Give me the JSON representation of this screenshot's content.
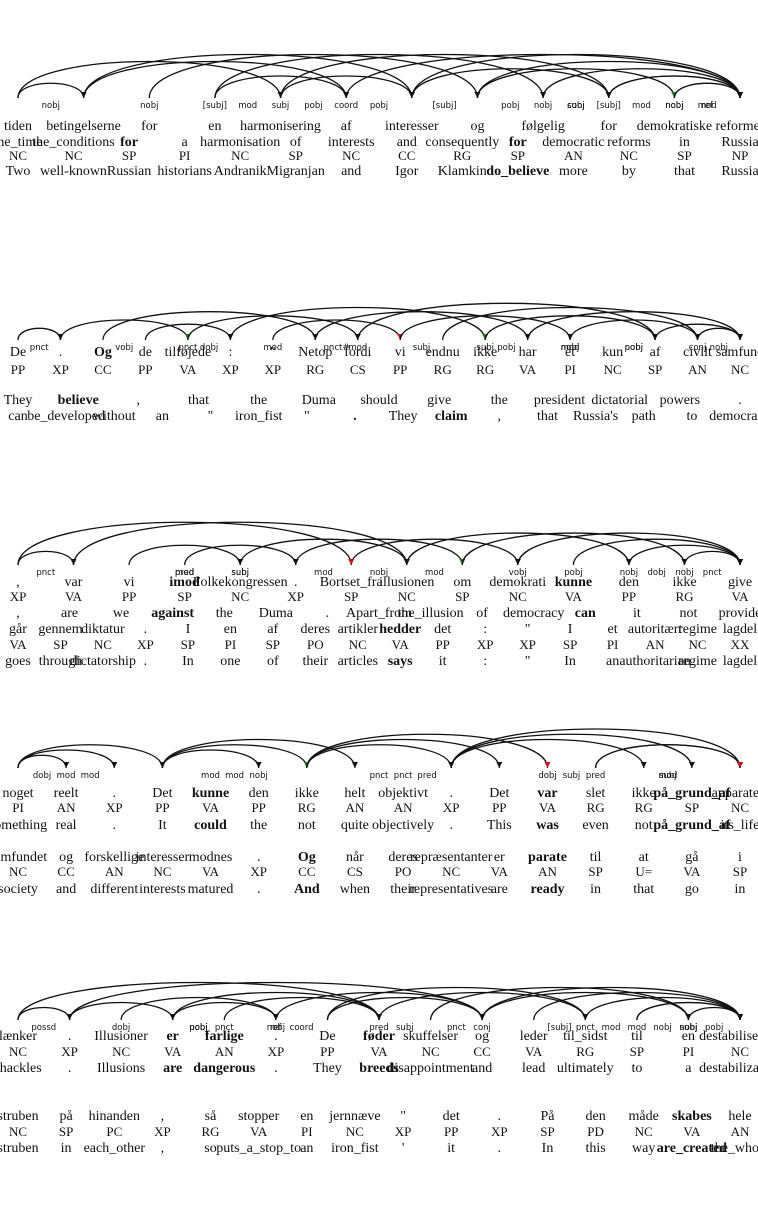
{
  "colors": {
    "ink": "#111111",
    "blue": "#1a1acc",
    "red": "#cc1111",
    "green": "#1a7a1a"
  },
  "blocks": [
    {
      "rows": [
        {
          "tokens": [
            "tiden",
            "betingelserne",
            "for",
            "en",
            "harmonisering",
            "af",
            "interesser",
            "og",
            "følgelig",
            "for",
            "demokratiske",
            "reformer"
          ]
        },
        {
          "tokens": [
            "the_time",
            "the_conditions",
            "for",
            "a",
            "harmonisation",
            "of",
            "interests",
            "and",
            "consequently",
            "for",
            "democratic",
            "reforms",
            "in",
            "Russia"
          ],
          "highlight": {
            "for": "blue"
          }
        },
        {
          "tags": [
            "NC",
            "NC",
            "SP",
            "PI",
            "NC",
            "SP",
            "NC",
            "CC",
            "RG",
            "SP",
            "AN",
            "NC",
            "SP",
            "NP"
          ]
        },
        {
          "tokens": [
            "Two",
            "well-known",
            "Russian",
            "historians",
            "Andranik",
            "Migranjan",
            "and",
            "Igor",
            "Klamkin",
            "do_believe",
            "more",
            "by",
            "that",
            "Russia"
          ],
          "highlight": {
            "do_believe": "blue"
          }
        }
      ],
      "arcs": [
        "nobj",
        "subj",
        "pobj",
        "nobj",
        "mod",
        "coord",
        "conj",
        "mod",
        "pobj",
        "nobj",
        "mod",
        "nobj",
        "pobj",
        "subj",
        "nobj",
        "[subj]",
        "[subj]",
        "[subj]",
        "ref"
      ]
    },
    {
      "rows": [
        {
          "tokens": [
            "De",
            ".",
            "Og",
            "de",
            "tilføjede",
            ":",
            "\"",
            "Netop",
            "fordi",
            "vi",
            "endnu",
            "ikke",
            "har",
            "et",
            "kun",
            "af",
            "civilt",
            "samfund"
          ],
          "highlight": {
            "Og": "blue"
          }
        },
        {
          "tags": [
            "PP",
            "XP",
            "CC",
            "PP",
            "VA",
            "XP",
            "XP",
            "RG",
            "CS",
            "PP",
            "RG",
            "RG",
            "VA",
            "PI",
            "NC",
            "SP",
            "AN",
            "NC"
          ]
        },
        {
          "tokens": [
            "They",
            "believe",
            ",",
            "that",
            "the",
            "Duma",
            "should",
            "give",
            "the",
            "president",
            "dictatorial",
            "powers",
            "."
          ],
          "highlight": {
            "believe": "blue",
            "the_president": "red"
          }
        },
        {
          "tokens": [
            "can",
            "be_developed",
            "without",
            "an",
            "\"",
            "iron_fist",
            "\"",
            ".",
            "They",
            "claim",
            ",",
            "that",
            "Russia's",
            "path",
            "to",
            "democracy"
          ],
          "highlight": {
            ".": "red",
            "claim": "green"
          }
        }
      ],
      "arcs": [
        "pnct",
        "pnct",
        "pnct#",
        "subj",
        "nobj",
        "conj",
        "vobj",
        "mod",
        "subj",
        "mod",
        "pobj",
        "nobj",
        "dobj",
        "mod",
        "pobj",
        "nobj"
      ]
    },
    {
      "rows": [
        {
          "tokens": [
            ",",
            "var",
            "vi",
            "imod",
            "Folkekongressen",
            ".",
            "Bortset_fra",
            "illusionen",
            "om",
            "demokrati",
            "kunne",
            "den",
            "ikke",
            "give"
          ],
          "highlight": {
            "imod": "blue",
            "kunne": "blue"
          }
        },
        {
          "tags": [
            "XP",
            "VA",
            "PP",
            "SP",
            "NC",
            "XP",
            "SP",
            "NC",
            "SP",
            "NC",
            "VA",
            "PP",
            "RG",
            "VA"
          ]
        },
        {
          "tokens": [
            ",",
            "are",
            "we",
            "against",
            "the",
            "Duma",
            ".",
            "Apart_from",
            "the_illusion",
            "of",
            "democracy",
            "can",
            "it",
            "not",
            "provide"
          ],
          "highlight": {
            "against": "blue",
            "can": "blue"
          }
        },
        {
          "tokens": [
            "går",
            "gennem",
            "diktatur",
            ".",
            "I",
            "en",
            "af",
            "deres",
            "artikler",
            "hedder",
            "det",
            ":",
            "\"",
            "I",
            "et",
            "autoritært",
            "regime",
            "lagdel"
          ],
          "highlight": {
            "hedder": "green"
          }
        },
        {
          "tags": [
            "VA",
            "SP",
            "NC",
            "XP",
            "SP",
            "PI",
            "SP",
            "PO",
            "NC",
            "VA",
            "PP",
            "XP",
            "XP",
            "SP",
            "PI",
            "AN",
            "NC",
            "XX"
          ]
        },
        {
          "tokens": [
            "goes",
            "through",
            "dictatorship",
            ".",
            "In",
            "one",
            "of",
            "their",
            "articles",
            "says",
            "it",
            ":",
            "\"",
            "In",
            "an",
            "authoritarian",
            "regime",
            "lagdel"
          ],
          "highlight": {
            "says": "green"
          }
        }
      ],
      "arcs": [
        "pnct",
        "subj",
        "mod",
        "nobj",
        "pnct",
        "mod",
        "nobj",
        "pobj",
        "nobj",
        "subj",
        "mod",
        "vobj",
        "dobj",
        "pred"
      ]
    },
    {
      "rows": [
        {
          "tokens": [
            "noget",
            "reelt",
            ".",
            "Det",
            "kunne",
            "den",
            "ikke",
            "helt",
            "objektivt",
            ".",
            "Det",
            "var",
            "slet",
            "ikke",
            "på_grund_af",
            "apparatets"
          ],
          "highlight": {
            "kunne": "blue",
            "var": "blue",
            "på_grund_af": "blue"
          }
        },
        {
          "tags": [
            "PI",
            "AN",
            "XP",
            "PP",
            "VA",
            "PP",
            "RG",
            "AN",
            "AN",
            "XP",
            "PP",
            "VA",
            "RG",
            "RG",
            "SP",
            "NC"
          ]
        },
        {
          "tokens": [
            "something",
            "real",
            ".",
            "It",
            "could",
            "the",
            "not",
            "quite",
            "objectively",
            ".",
            "This",
            "was",
            "even",
            "not",
            "på_grund_af",
            "its_life"
          ],
          "highlight": {
            "could": "blue",
            "was": "blue",
            "på_grund_af": "blue"
          }
        },
        {
          "tokens": [
            "samfundet",
            "og",
            "forskellige",
            "interesser",
            "modnes",
            ".",
            "Og",
            "når",
            "deres",
            "repræsentanter",
            "er",
            "parate",
            "til",
            "at",
            "gå",
            "i"
          ],
          "highlight": {
            "Og": "green",
            "parate": "blue"
          }
        },
        {
          "tags": [
            "NC",
            "CC",
            "AN",
            "NC",
            "VA",
            "XP",
            "CC",
            "CS",
            "PO",
            "NC",
            "VA",
            "AN",
            "SP",
            "U=",
            "VA",
            "SP"
          ]
        },
        {
          "tokens": [
            "society",
            "and",
            "different",
            "interests",
            "matured",
            ".",
            "And",
            "when",
            "their",
            "representatives",
            "are",
            "ready",
            "in",
            "that",
            "go",
            "in"
          ],
          "highlight": {
            "And": "green",
            "ready": "blue"
          }
        }
      ],
      "arcs": [
        "dobj",
        "mod",
        "pnct",
        "dobj",
        "subj",
        "mod",
        "mod",
        "pnct",
        "subj",
        "mod",
        "mod",
        "nobj",
        "pred",
        "pred"
      ]
    },
    {
      "rows": [
        {
          "tokens": [
            "lænker",
            ".",
            "Illusioner",
            "er",
            "farlige",
            ".",
            "De",
            "føder",
            "skuffelser",
            "og",
            "leder",
            "til_sidst",
            "til",
            "en",
            "destabilisering"
          ],
          "highlight": {
            "er": "blue",
            "farlige": "blue",
            "føder": "blue"
          }
        },
        {
          "tags": [
            "NC",
            "XP",
            "NC",
            "VA",
            "AN",
            "XP",
            "PP",
            "VA",
            "NC",
            "CC",
            "VA",
            "RG",
            "SP",
            "PI",
            "NC"
          ]
        },
        {
          "tokens": [
            "shackles",
            ".",
            "Illusions",
            "are",
            "dangerous",
            ".",
            "They",
            "breeds",
            "disappointment",
            "and",
            "lead",
            "ultimately",
            "to",
            "a",
            "destabilization"
          ],
          "highlight": {
            "are": "blue",
            "dangerous": "blue",
            "breeds": "blue"
          }
        },
        {
          "tokens": [
            "struben",
            "på",
            "hinanden",
            ",",
            "så",
            "stopper",
            "en",
            "jernnæve",
            "\"",
            "det",
            ".",
            "På",
            "den",
            "måde",
            "skabes",
            "hele"
          ],
          "highlight": {
            "skabes": "blue"
          }
        },
        {
          "tags": [
            "NC",
            "SP",
            "PC",
            "XP",
            "RG",
            "VA",
            "PI",
            "NC",
            "XP",
            "PP",
            "XP",
            "SP",
            "PD",
            "NC",
            "VA",
            "AN"
          ]
        },
        {
          "tokens": [
            "struben",
            "in",
            "each_other",
            ",",
            "so",
            "puts_a_stop_to",
            "an",
            "iron_fist",
            "'",
            "it",
            ".",
            "In",
            "this",
            "way",
            "are_created",
            "the_whole"
          ],
          "highlight": {
            "are_created": "blue"
          }
        }
      ],
      "arcs": [
        "possd",
        "pnct",
        "subj",
        "pnct",
        "subj",
        "dobj",
        "coord",
        "conj",
        "mod",
        "pobj",
        "nobj",
        "pred",
        "[subj]",
        "nobj",
        "pobj",
        "nobj",
        "pnct",
        "mod",
        "nobj",
        "ref"
      ]
    }
  ]
}
